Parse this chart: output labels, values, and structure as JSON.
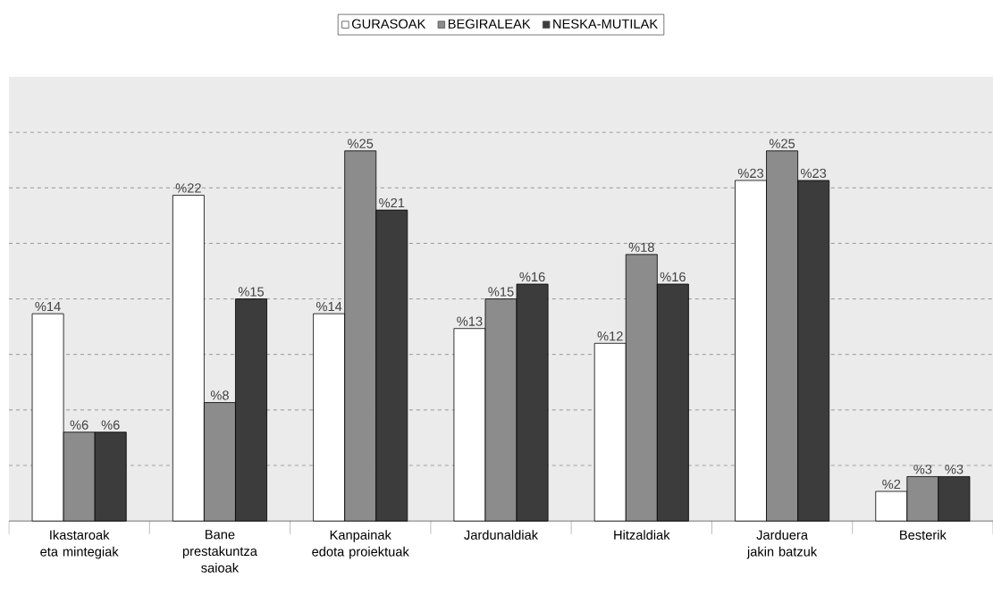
{
  "chart_data": {
    "type": "bar",
    "categories": [
      "Ikastaroak eta mintegiak",
      "Bane prestakuntza saioak",
      "Kanpainak edota proiektuak",
      "Jardunaldiak",
      "Hitzaldiak",
      "Jarduera jakin batzuk",
      "Besterik"
    ],
    "series": [
      {
        "name": "GURASOAK",
        "color": "#ffffff",
        "values": [
          14,
          22,
          14,
          13,
          12,
          23,
          2
        ],
        "value_labels": [
          "%14",
          "%22",
          "%14",
          "%13",
          "%12",
          "%23",
          "%2"
        ]
      },
      {
        "name": "BEGIRALEAK",
        "color": "#8c8c8c",
        "values": [
          6,
          8,
          25,
          15,
          18,
          25,
          3
        ],
        "value_labels": [
          "%6",
          "%8",
          "%25",
          "%15",
          "%18",
          "%25",
          "%3"
        ]
      },
      {
        "name": "NESKA-MUTILAK",
        "color": "#3c3c3c",
        "values": [
          6,
          15,
          21,
          16,
          16,
          23,
          3
        ],
        "value_labels": [
          "%6",
          "%15",
          "%21",
          "%16",
          "%16",
          "%23",
          "%3"
        ]
      }
    ],
    "ylim": [
      0,
      30
    ],
    "yticks": [
      {
        "value": 3.75,
        "label": null
      },
      {
        "value": 7.5,
        "label": null
      },
      {
        "value": 11.25,
        "label": null
      },
      {
        "value": 15,
        "label": null
      },
      {
        "value": 18.75,
        "label": null
      },
      {
        "value": 22.5,
        "label": null
      },
      {
        "value": 26.25,
        "label": null
      }
    ],
    "grid": "y",
    "legend": "top",
    "tick_labels": "x"
  }
}
